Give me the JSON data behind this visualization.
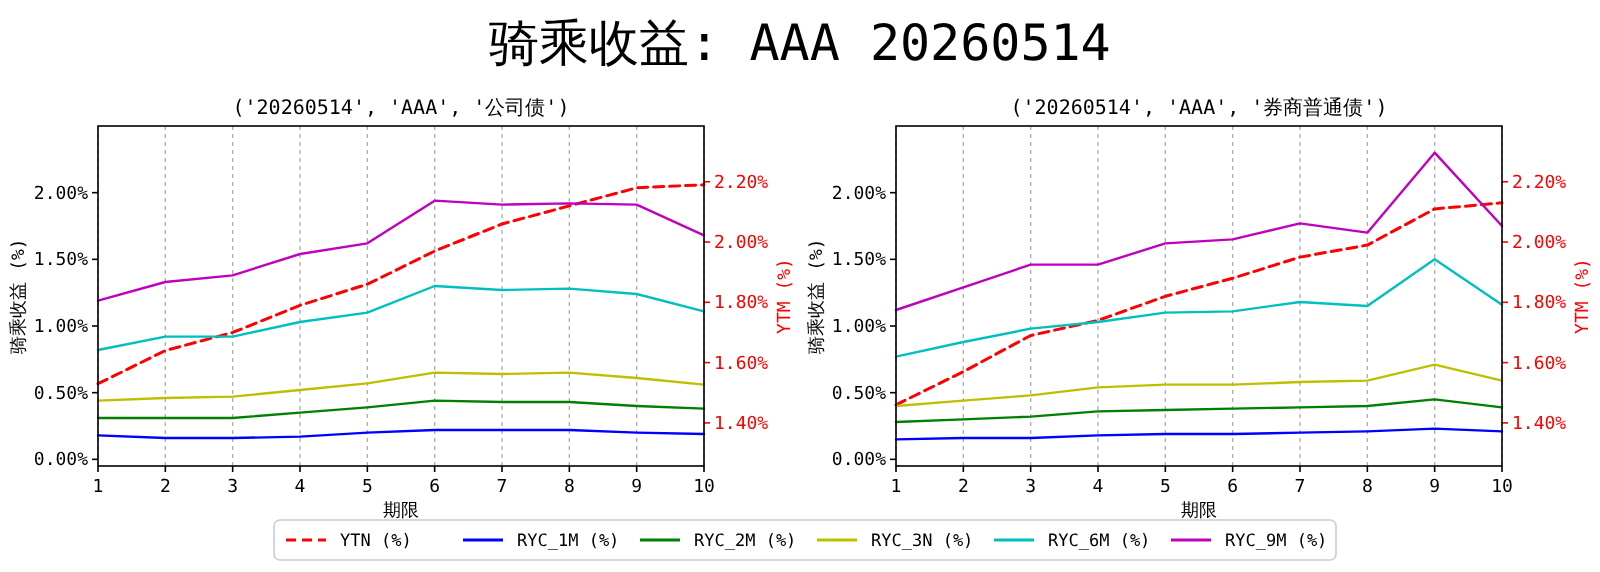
{
  "chart_data": [
    {
      "type": "line",
      "title": "('20260514', 'AAA', '公司债')",
      "annotations": [
        "骑乘收益: AAA 20260514"
      ],
      "xlabel": "期限",
      "ylabel": "骑乘收益 (%)",
      "y2label": "YTM (%)",
      "x": [
        1,
        2,
        3,
        4,
        5,
        6,
        7,
        8,
        9,
        10
      ],
      "xlim": [
        1,
        10
      ],
      "xticks": [
        1,
        2,
        3,
        4,
        5,
        6,
        7,
        8,
        9,
        10
      ],
      "ylim": [
        -0.05,
        2.5
      ],
      "yticks": [
        {
          "value": 0,
          "label": "0.00%"
        },
        {
          "value": 0.5,
          "label": "0.50%"
        },
        {
          "value": 1,
          "label": "1.00%"
        },
        {
          "value": 1.5,
          "label": "1.50%"
        },
        {
          "value": 2,
          "label": "2.00%"
        }
      ],
      "y2lim": [
        1.257,
        2.385
      ],
      "y2ticks": [
        {
          "value": 1.4,
          "label": "1.40%"
        },
        {
          "value": 1.6,
          "label": "1.60%"
        },
        {
          "value": 1.8,
          "label": "1.80%"
        },
        {
          "value": 2.0,
          "label": "2.00%"
        },
        {
          "value": 2.2,
          "label": "2.20%"
        }
      ],
      "grid": "x",
      "legend": "bottom",
      "series": [
        {
          "name": "YTN (%)",
          "color": "#ff0000",
          "axis": "y2",
          "line_style": "dashed",
          "values": [
            1.53,
            1.64,
            1.7,
            1.79,
            1.86,
            1.97,
            2.06,
            2.12,
            2.18,
            2.19
          ]
        },
        {
          "name": "RYC_1M (%)",
          "color": "#0000ff",
          "values": [
            0.18,
            0.16,
            0.16,
            0.17,
            0.2,
            0.22,
            0.22,
            0.22,
            0.2,
            0.19
          ]
        },
        {
          "name": "RYC_2M (%)",
          "color": "#008000",
          "values": [
            0.31,
            0.31,
            0.31,
            0.35,
            0.39,
            0.44,
            0.43,
            0.43,
            0.4,
            0.38
          ]
        },
        {
          "name": "RYC_3N (%)",
          "color": "#bfbf00",
          "values": [
            0.44,
            0.46,
            0.47,
            0.52,
            0.57,
            0.65,
            0.64,
            0.65,
            0.61,
            0.56
          ]
        },
        {
          "name": "RYC_6M (%)",
          "color": "#00bfbf",
          "values": [
            0.82,
            0.92,
            0.92,
            1.03,
            1.1,
            1.3,
            1.27,
            1.28,
            1.24,
            1.11
          ]
        },
        {
          "name": "RYC_9M (%)",
          "color": "#bf00bf",
          "values": [
            1.19,
            1.33,
            1.38,
            1.54,
            1.62,
            1.94,
            1.91,
            1.92,
            1.91,
            1.68
          ]
        }
      ]
    },
    {
      "type": "line",
      "title": "('20260514', 'AAA', '券商普通债')",
      "xlabel": "期限",
      "ylabel": "骑乘收益 (%)",
      "y2label": "YTM (%)",
      "x": [
        1,
        2,
        3,
        4,
        5,
        6,
        7,
        8,
        9,
        10
      ],
      "xlim": [
        1,
        10
      ],
      "xticks": [
        1,
        2,
        3,
        4,
        5,
        6,
        7,
        8,
        9,
        10
      ],
      "ylim": [
        -0.05,
        2.5
      ],
      "yticks": [
        {
          "value": 0,
          "label": "0.00%"
        },
        {
          "value": 0.5,
          "label": "0.50%"
        },
        {
          "value": 1,
          "label": "1.00%"
        },
        {
          "value": 1.5,
          "label": "1.50%"
        },
        {
          "value": 2,
          "label": "2.00%"
        }
      ],
      "y2lim": [
        1.257,
        2.385
      ],
      "y2ticks": [
        {
          "value": 1.4,
          "label": "1.40%"
        },
        {
          "value": 1.6,
          "label": "1.60%"
        },
        {
          "value": 1.8,
          "label": "1.80%"
        },
        {
          "value": 2.0,
          "label": "2.00%"
        },
        {
          "value": 2.2,
          "label": "2.20%"
        }
      ],
      "grid": "x",
      "legend": "bottom",
      "series": [
        {
          "name": "YTN (%)",
          "color": "#ff0000",
          "axis": "y2",
          "line_style": "dashed",
          "values": [
            1.46,
            1.57,
            1.69,
            1.74,
            1.82,
            1.88,
            1.95,
            1.99,
            2.11,
            2.13
          ]
        },
        {
          "name": "RYC_1M (%)",
          "color": "#0000ff",
          "values": [
            0.15,
            0.16,
            0.16,
            0.18,
            0.19,
            0.19,
            0.2,
            0.21,
            0.23,
            0.21
          ]
        },
        {
          "name": "RYC_2M (%)",
          "color": "#008000",
          "values": [
            0.28,
            0.3,
            0.32,
            0.36,
            0.37,
            0.38,
            0.39,
            0.4,
            0.45,
            0.39
          ]
        },
        {
          "name": "RYC_3N (%)",
          "color": "#bfbf00",
          "values": [
            0.4,
            0.44,
            0.48,
            0.54,
            0.56,
            0.56,
            0.58,
            0.59,
            0.71,
            0.59
          ]
        },
        {
          "name": "RYC_6M (%)",
          "color": "#00bfbf",
          "values": [
            0.77,
            0.88,
            0.98,
            1.03,
            1.1,
            1.11,
            1.18,
            1.15,
            1.5,
            1.16
          ]
        },
        {
          "name": "RYC_9M (%)",
          "color": "#bf00bf",
          "values": [
            1.12,
            1.29,
            1.46,
            1.46,
            1.62,
            1.65,
            1.77,
            1.7,
            2.3,
            1.75
          ]
        }
      ]
    }
  ]
}
